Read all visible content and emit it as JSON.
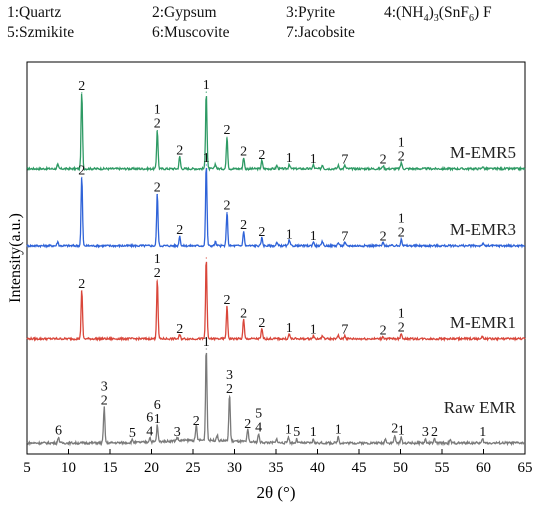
{
  "legend": {
    "items": [
      {
        "text": "1:Quartz"
      },
      {
        "text": "2:Gypsum"
      },
      {
        "text": "3:Pyrite"
      },
      {
        "text": "4:(NH4)3(SnF6) F"
      },
      {
        "text": "5:Szmikite"
      },
      {
        "text": "6:Muscovite"
      },
      {
        "text": "7:Jacobsite"
      }
    ]
  },
  "chart_data": {
    "type": "line",
    "title": "",
    "xlabel": "2θ (°)",
    "ylabel": "Intensity(a.u.)",
    "xlim": [
      5,
      65
    ],
    "xticks": [
      5,
      10,
      15,
      20,
      25,
      30,
      35,
      40,
      45,
      50,
      55,
      60,
      65
    ],
    "series": [
      {
        "name": "M-EMR5",
        "color": "#2e9a64",
        "peaks": [
          [
            8.7,
            0.05
          ],
          [
            11.6,
            0.94
          ],
          [
            20.7,
            0.48
          ],
          [
            23.4,
            0.15
          ],
          [
            26.6,
            0.95
          ],
          [
            27.7,
            0.06
          ],
          [
            29.1,
            0.4
          ],
          [
            31.1,
            0.14
          ],
          [
            33.3,
            0.1
          ],
          [
            35.1,
            0.04
          ],
          [
            36.6,
            0.06
          ],
          [
            39.5,
            0.05
          ],
          [
            40.6,
            0.05
          ],
          [
            42.5,
            0.04
          ],
          [
            43.3,
            0.04
          ],
          [
            47.9,
            0.04
          ],
          [
            50.1,
            0.08
          ],
          [
            59.9,
            0.03
          ]
        ]
      },
      {
        "name": "M-EMR3",
        "color": "#2f63d8",
        "peaks": [
          [
            8.7,
            0.05
          ],
          [
            11.6,
            0.85
          ],
          [
            20.7,
            0.64
          ],
          [
            23.4,
            0.12
          ],
          [
            26.6,
            1.0
          ],
          [
            27.7,
            0.05
          ],
          [
            29.1,
            0.42
          ],
          [
            31.1,
            0.18
          ],
          [
            33.3,
            0.1
          ],
          [
            35.1,
            0.04
          ],
          [
            36.6,
            0.07
          ],
          [
            39.5,
            0.05
          ],
          [
            40.6,
            0.05
          ],
          [
            42.5,
            0.04
          ],
          [
            43.3,
            0.04
          ],
          [
            47.9,
            0.04
          ],
          [
            50.1,
            0.09
          ],
          [
            59.9,
            0.03
          ]
        ]
      },
      {
        "name": "M-EMR1",
        "color": "#d9463a",
        "peaks": [
          [
            11.6,
            0.6
          ],
          [
            20.7,
            0.73
          ],
          [
            23.4,
            0.05
          ],
          [
            26.6,
            1.0
          ],
          [
            29.1,
            0.4
          ],
          [
            31.1,
            0.24
          ],
          [
            33.3,
            0.12
          ],
          [
            36.6,
            0.06
          ],
          [
            39.5,
            0.04
          ],
          [
            40.6,
            0.04
          ],
          [
            42.5,
            0.04
          ],
          [
            43.3,
            0.04
          ],
          [
            47.9,
            0.03
          ],
          [
            50.1,
            0.07
          ],
          [
            59.9,
            0.03
          ]
        ]
      },
      {
        "name": "Raw EMR",
        "color": "#7a7a7a",
        "peaks": [
          [
            8.8,
            0.06
          ],
          [
            14.3,
            0.38
          ],
          [
            17.7,
            0.03
          ],
          [
            19.8,
            0.05
          ],
          [
            20.7,
            0.18
          ],
          [
            23.1,
            0.04
          ],
          [
            25.4,
            0.16
          ],
          [
            26.6,
            1.0
          ],
          [
            27.9,
            0.06
          ],
          [
            29.4,
            0.5
          ],
          [
            31.6,
            0.13
          ],
          [
            32.9,
            0.09
          ],
          [
            35.1,
            0.04
          ],
          [
            36.5,
            0.07
          ],
          [
            37.5,
            0.04
          ],
          [
            39.5,
            0.04
          ],
          [
            42.5,
            0.07
          ],
          [
            48.2,
            0.05
          ],
          [
            49.3,
            0.08
          ],
          [
            50.1,
            0.06
          ],
          [
            53.0,
            0.04
          ],
          [
            54.1,
            0.04
          ],
          [
            56.0,
            0.03
          ],
          [
            59.9,
            0.04
          ]
        ]
      }
    ],
    "peak_labels": [
      {
        "series": "M-EMR5",
        "x": 11.6,
        "lines": [
          "2"
        ]
      },
      {
        "series": "M-EMR5",
        "x": 20.7,
        "lines": [
          "1",
          "2"
        ]
      },
      {
        "series": "M-EMR5",
        "x": 23.4,
        "lines": [
          "2"
        ]
      },
      {
        "series": "M-EMR5",
        "x": 26.6,
        "lines": [
          "1"
        ]
      },
      {
        "series": "M-EMR5",
        "x": 29.1,
        "lines": [
          "2"
        ]
      },
      {
        "series": "M-EMR5",
        "x": 31.1,
        "lines": [
          "2"
        ]
      },
      {
        "series": "M-EMR5",
        "x": 33.3,
        "lines": [
          "2"
        ]
      },
      {
        "series": "M-EMR5",
        "x": 36.6,
        "lines": [
          "1"
        ]
      },
      {
        "series": "M-EMR5",
        "x": 39.5,
        "lines": [
          "1"
        ]
      },
      {
        "series": "M-EMR5",
        "x": 43.3,
        "lines": [
          "7"
        ]
      },
      {
        "series": "M-EMR5",
        "x": 47.9,
        "lines": [
          "2"
        ]
      },
      {
        "series": "M-EMR5",
        "x": 50.1,
        "lines": [
          "1",
          "2"
        ]
      },
      {
        "series": "M-EMR3",
        "x": 11.6,
        "lines": [
          "2"
        ]
      },
      {
        "series": "M-EMR3",
        "x": 20.7,
        "lines": [
          "2"
        ]
      },
      {
        "series": "M-EMR3",
        "x": 23.4,
        "lines": [
          "2"
        ]
      },
      {
        "series": "M-EMR3",
        "x": 26.6,
        "lines": [
          "1"
        ]
      },
      {
        "series": "M-EMR3",
        "x": 29.1,
        "lines": [
          "2"
        ]
      },
      {
        "series": "M-EMR3",
        "x": 31.1,
        "lines": [
          "2"
        ]
      },
      {
        "series": "M-EMR3",
        "x": 33.3,
        "lines": [
          "2"
        ]
      },
      {
        "series": "M-EMR3",
        "x": 36.6,
        "lines": [
          "1"
        ]
      },
      {
        "series": "M-EMR3",
        "x": 39.5,
        "lines": [
          "1"
        ]
      },
      {
        "series": "M-EMR3",
        "x": 43.3,
        "lines": [
          "7"
        ]
      },
      {
        "series": "M-EMR3",
        "x": 47.9,
        "lines": [
          "2"
        ]
      },
      {
        "series": "M-EMR3",
        "x": 50.1,
        "lines": [
          "1",
          "2"
        ]
      },
      {
        "series": "M-EMR1",
        "x": 11.6,
        "lines": [
          "2"
        ]
      },
      {
        "series": "M-EMR1",
        "x": 20.7,
        "lines": [
          "1",
          "2"
        ]
      },
      {
        "series": "M-EMR1",
        "x": 23.4,
        "lines": [
          "2"
        ]
      },
      {
        "series": "M-EMR1",
        "x": 29.1,
        "lines": [
          "2"
        ]
      },
      {
        "series": "M-EMR1",
        "x": 31.1,
        "lines": [
          "2"
        ]
      },
      {
        "series": "M-EMR1",
        "x": 33.3,
        "lines": [
          "2"
        ]
      },
      {
        "series": "M-EMR1",
        "x": 36.6,
        "lines": [
          "1"
        ]
      },
      {
        "series": "M-EMR1",
        "x": 39.5,
        "lines": [
          "1"
        ]
      },
      {
        "series": "M-EMR1",
        "x": 43.3,
        "lines": [
          "7"
        ]
      },
      {
        "series": "M-EMR1",
        "x": 47.9,
        "lines": [
          "2"
        ]
      },
      {
        "series": "M-EMR1",
        "x": 50.1,
        "lines": [
          "1",
          "2"
        ]
      },
      {
        "series": "Raw EMR",
        "x": 8.8,
        "lines": [
          "6"
        ]
      },
      {
        "series": "Raw EMR",
        "x": 14.3,
        "lines": [
          "3",
          "2"
        ]
      },
      {
        "series": "Raw EMR",
        "x": 17.7,
        "lines": [
          "5"
        ]
      },
      {
        "series": "Raw EMR",
        "x": 19.8,
        "lines": [
          "6",
          "4"
        ]
      },
      {
        "series": "Raw EMR",
        "x": 20.7,
        "lines": [
          "6",
          "1"
        ]
      },
      {
        "series": "Raw EMR",
        "x": 23.1,
        "lines": [
          "3"
        ]
      },
      {
        "series": "Raw EMR",
        "x": 25.4,
        "lines": [
          "2"
        ]
      },
      {
        "series": "Raw EMR",
        "x": 26.6,
        "lines": [
          "1"
        ]
      },
      {
        "series": "Raw EMR",
        "x": 29.4,
        "lines": [
          "3",
          "2"
        ]
      },
      {
        "series": "Raw EMR",
        "x": 31.6,
        "lines": [
          "2"
        ]
      },
      {
        "series": "Raw EMR",
        "x": 32.9,
        "lines": [
          "5",
          "4"
        ]
      },
      {
        "series": "Raw EMR",
        "x": 36.5,
        "lines": [
          "1"
        ]
      },
      {
        "series": "Raw EMR",
        "x": 37.5,
        "lines": [
          "5"
        ]
      },
      {
        "series": "Raw EMR",
        "x": 39.5,
        "lines": [
          "1"
        ]
      },
      {
        "series": "Raw EMR",
        "x": 42.5,
        "lines": [
          "1"
        ]
      },
      {
        "series": "Raw EMR",
        "x": 49.3,
        "lines": [
          "2"
        ]
      },
      {
        "series": "Raw EMR",
        "x": 50.1,
        "lines": [
          "1"
        ]
      },
      {
        "series": "Raw EMR",
        "x": 53.0,
        "lines": [
          "3"
        ]
      },
      {
        "series": "Raw EMR",
        "x": 54.1,
        "lines": [
          "2"
        ]
      },
      {
        "series": "Raw EMR",
        "x": 59.9,
        "lines": [
          "1"
        ]
      }
    ]
  }
}
